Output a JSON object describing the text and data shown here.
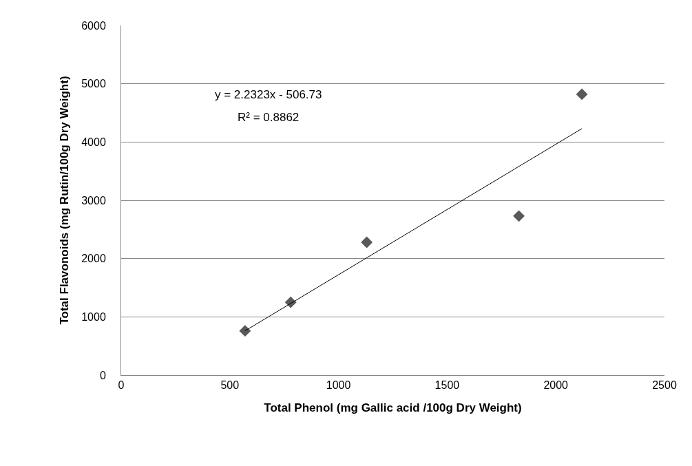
{
  "chart_data": {
    "type": "scatter",
    "xlabel": "Total Phenol (mg Gallic acid /100g Dry Weight)",
    "ylabel": "Total Flavonoids (mg Rutin/100g Dry Weight)",
    "series": [
      {
        "color": "#595959",
        "marker": "diamond",
        "x": [
          570,
          780,
          1130,
          1830,
          2120
        ],
        "values": [
          760,
          1250,
          2280,
          2730,
          4820
        ]
      },
      {
        "type": "line",
        "color": "#000000",
        "marker": "none",
        "line_style": "solid",
        "x": [
          570,
          2120
        ],
        "values": [
          760,
          4230
        ]
      }
    ],
    "annotations": [
      "y = 2.2323x - 506.73",
      "R² = 0.8862"
    ],
    "xlim": [
      0,
      2500
    ],
    "xticks": [
      0,
      500,
      1000,
      1500,
      2000,
      2500
    ],
    "ylim": [
      0,
      6000
    ],
    "yticks": [
      0,
      1000,
      2000,
      3000,
      4000,
      5000,
      6000
    ],
    "grid": "y"
  }
}
